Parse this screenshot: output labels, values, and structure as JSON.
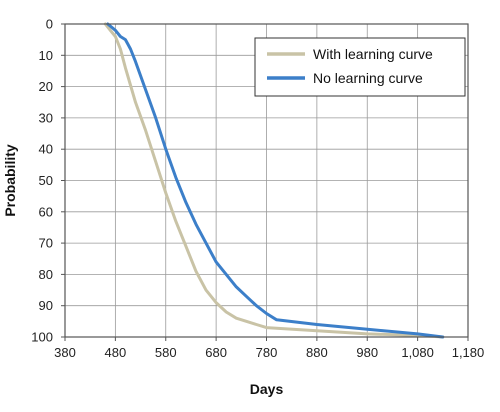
{
  "chart_data": {
    "type": "line",
    "xlabel": "Days",
    "ylabel": "Probability",
    "xlim": [
      380,
      1180
    ],
    "ylim": [
      0,
      100
    ],
    "y_inverted": true,
    "x_ticks": [
      380,
      480,
      580,
      680,
      780,
      880,
      980,
      1080,
      1180
    ],
    "x_tick_labels": [
      "380",
      "480",
      "580",
      "680",
      "780",
      "880",
      "980",
      "1,080",
      "1,180"
    ],
    "y_ticks": [
      0,
      10,
      20,
      30,
      40,
      50,
      60,
      70,
      80,
      90,
      100
    ],
    "y_tick_labels": [
      "0",
      "10",
      "20",
      "30",
      "40",
      "50",
      "60",
      "70",
      "80",
      "90",
      "100"
    ],
    "grid": true,
    "legend_position": "top-right",
    "series": [
      {
        "name": "With learning curve",
        "color": "#c9c3a6",
        "x": [
          460,
          470,
          480,
          490,
          500,
          520,
          540,
          560,
          580,
          600,
          620,
          640,
          660,
          680,
          700,
          720,
          740,
          760,
          780,
          880,
          980,
          1080,
          1130
        ],
        "y": [
          0,
          2,
          4,
          8,
          14,
          25,
          34,
          44,
          54,
          63,
          71,
          79,
          85,
          89,
          92,
          94,
          95,
          96,
          97,
          98,
          99,
          99.5,
          100
        ]
      },
      {
        "name": "No learning curve",
        "color": "#3c7fc9",
        "x": [
          465,
          480,
          490,
          500,
          510,
          520,
          540,
          560,
          580,
          600,
          620,
          640,
          660,
          680,
          700,
          720,
          740,
          760,
          780,
          800,
          880,
          980,
          1080,
          1130
        ],
        "y": [
          0,
          2,
          4,
          5,
          8,
          12,
          21,
          30,
          40,
          49,
          57,
          64,
          70,
          76,
          80,
          84,
          87,
          90,
          92.5,
          94.5,
          96,
          97.5,
          99,
          100
        ]
      }
    ]
  }
}
